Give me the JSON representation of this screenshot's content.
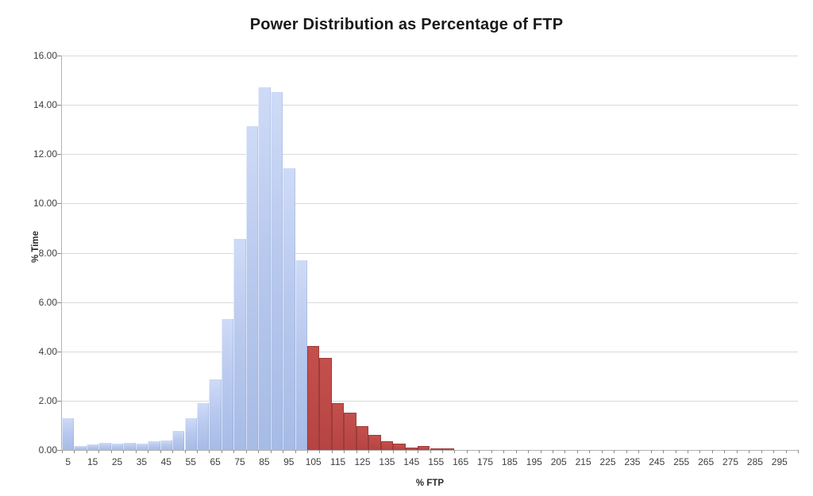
{
  "chart": {
    "title": "Power Distribution as Percentage of FTP",
    "xlabel": "% FTP",
    "ylabel": "% Time"
  },
  "chart_data": {
    "type": "bar",
    "title": "Power Distribution as Percentage of FTP",
    "xlabel": "% FTP",
    "ylabel": "% Time",
    "ylim": [
      0,
      16
    ],
    "ytick_step": 2,
    "ytick_labels": [
      "16.00",
      "14.00",
      "12.00",
      "10.00",
      "8.00",
      "6.00",
      "4.00",
      "2.00",
      "0.00"
    ],
    "xtick_labels": [
      "5",
      "15",
      "25",
      "35",
      "45",
      "55",
      "65",
      "75",
      "85",
      "95",
      "105",
      "115",
      "125",
      "135",
      "145",
      "155",
      "165",
      "175",
      "185",
      "195",
      "205",
      "215",
      "225",
      "235",
      "245",
      "255",
      "265",
      "275",
      "285",
      "295"
    ],
    "bin_width_ftp": 5,
    "x_bins_total": 60,
    "categories": [
      5,
      10,
      15,
      20,
      25,
      30,
      35,
      40,
      45,
      50,
      55,
      60,
      65,
      70,
      75,
      80,
      85,
      90,
      95,
      100,
      105,
      110,
      115,
      120,
      125,
      130,
      135,
      140,
      145,
      150,
      155,
      160
    ],
    "values": [
      1.3,
      0.15,
      0.24,
      0.29,
      0.26,
      0.29,
      0.26,
      0.34,
      0.4,
      0.78,
      1.3,
      1.9,
      2.88,
      5.3,
      8.57,
      13.13,
      14.7,
      14.53,
      11.43,
      7.7,
      4.22,
      3.73,
      1.89,
      1.52,
      0.97,
      0.6,
      0.37,
      0.25,
      0.1,
      0.17,
      0.06,
      0.06
    ],
    "split_above_ftp": 100,
    "grid": true,
    "legend": "none",
    "colors": {
      "bar_below_ftp": "#b6c8ee",
      "bar_above_ftp": "#bd4a46",
      "gridline": "#d9d9d9",
      "axis": "#b3b3b3",
      "text": "#3d3d3d"
    }
  }
}
